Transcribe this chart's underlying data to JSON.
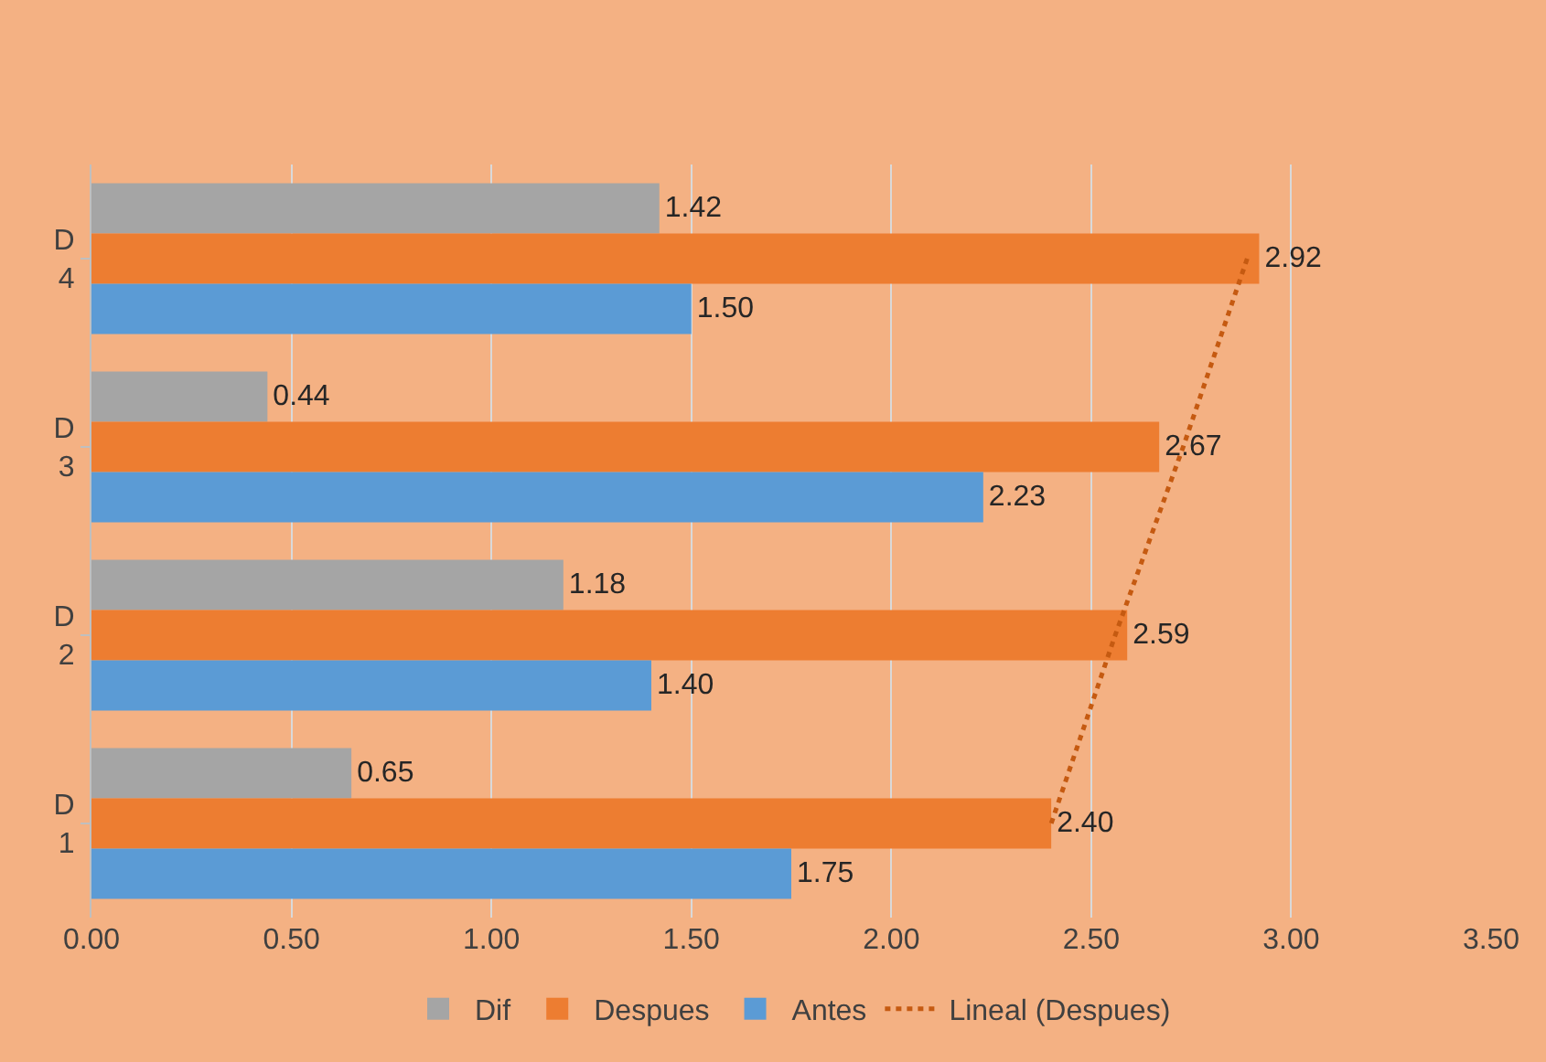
{
  "chart_data": {
    "type": "bar",
    "orientation": "horizontal",
    "categories": [
      "D 4",
      "D 3",
      "D 2",
      "D 1"
    ],
    "series": [
      {
        "name": "Dif",
        "color": "#a5a5a5",
        "values": [
          1.42,
          0.44,
          1.18,
          0.65
        ],
        "value_labels": [
          "1.42",
          "0.44",
          "1.18",
          "0.65"
        ]
      },
      {
        "name": "Despues",
        "color": "#ed7d31",
        "values": [
          2.92,
          2.67,
          2.59,
          2.4
        ],
        "value_labels": [
          "2.92",
          "2.67",
          "2.59",
          "2.40"
        ]
      },
      {
        "name": "Antes",
        "color": "#5b9bd5",
        "values": [
          1.5,
          2.23,
          1.4,
          1.75
        ],
        "value_labels": [
          "1.50",
          "2.23",
          "1.40",
          "1.75"
        ]
      },
      {
        "name": "Lineal (Despues)",
        "type": "line",
        "line_style": "dotted",
        "color": "#c55a11",
        "values": [
          2.89,
          2.73,
          2.56,
          2.4
        ]
      }
    ],
    "xlim": [
      0,
      3.5
    ],
    "xticks": [
      {
        "value": 0,
        "label": "0.00"
      },
      {
        "value": 0.5,
        "label": "0.50"
      },
      {
        "value": 1,
        "label": "1.00"
      },
      {
        "value": 1.5,
        "label": "1.50"
      },
      {
        "value": 2,
        "label": "2.00"
      },
      {
        "value": 2.5,
        "label": "2.50"
      },
      {
        "value": 3,
        "label": "3.00"
      },
      {
        "value": 3.5,
        "label": "3.50"
      }
    ],
    "grid": "x",
    "legend": "bottom"
  }
}
